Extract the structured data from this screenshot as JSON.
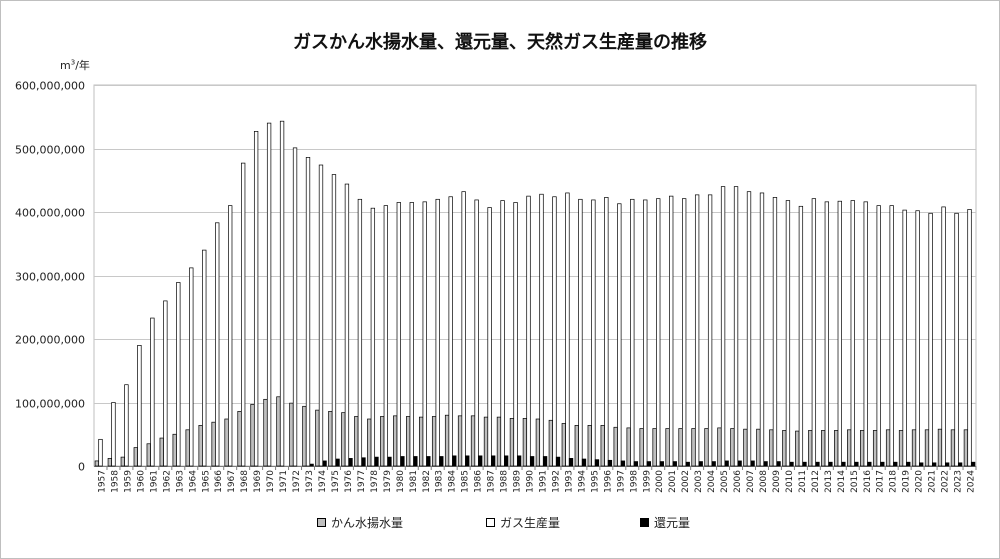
{
  "chart_data": {
    "type": "bar",
    "title": "ガスかん水揚水量、還元量、天然ガス生産量の推移",
    "unit_label": {
      "prefix": "m",
      "sup": "3",
      "suffix": "/年"
    },
    "categories": [
      "1957",
      "1958",
      "1959",
      "1960",
      "1961",
      "1962",
      "1963",
      "1964",
      "1965",
      "1966",
      "1967",
      "1968",
      "1969",
      "1970",
      "1971",
      "1972",
      "1973",
      "1974",
      "1975",
      "1976",
      "1977",
      "1978",
      "1979",
      "1980",
      "1981",
      "1982",
      "1983",
      "1984",
      "1985",
      "1986",
      "1987",
      "1988",
      "1989",
      "1990",
      "1991",
      "1992",
      "1993",
      "1994",
      "1995",
      "1996",
      "1997",
      "1998",
      "1999",
      "2000",
      "2001",
      "2002",
      "2003",
      "2004",
      "2005",
      "2006",
      "2007",
      "2008",
      "2009",
      "2010",
      "2011",
      "2012",
      "2013",
      "2014",
      "2015",
      "2016",
      "2017",
      "2018",
      "2019",
      "2020",
      "2021",
      "2022",
      "2023",
      "2024"
    ],
    "ylim": [
      0,
      600000000
    ],
    "yticks": [
      0,
      100000000,
      200000000,
      300000000,
      400000000,
      500000000,
      600000000
    ],
    "ytick_labels": [
      "0",
      "100,000,000",
      "200,000,000",
      "300,000,000",
      "400,000,000",
      "500,000,000",
      "600,000,000"
    ],
    "grid": true,
    "legend_position": "bottom",
    "series": [
      {
        "name": "かん水揚水量",
        "color": "#bfbfbf",
        "values": [
          8000000,
          12000000,
          14000000,
          29000000,
          35000000,
          44000000,
          50000000,
          57000000,
          64000000,
          69000000,
          74000000,
          86000000,
          97000000,
          105000000,
          109000000,
          99000000,
          94000000,
          88000000,
          86000000,
          84000000,
          78000000,
          74000000,
          78000000,
          79000000,
          78000000,
          77000000,
          78000000,
          80000000,
          79000000,
          79000000,
          77000000,
          77000000,
          75000000,
          75000000,
          74000000,
          72000000,
          67000000,
          64000000,
          64000000,
          64000000,
          61000000,
          60000000,
          59000000,
          59000000,
          59000000,
          59000000,
          59000000,
          59000000,
          60000000,
          59000000,
          58000000,
          58000000,
          57000000,
          56000000,
          55000000,
          56000000,
          56000000,
          56000000,
          57000000,
          56000000,
          56000000,
          57000000,
          56000000,
          57000000,
          57000000,
          58000000,
          57000000,
          57000000
        ]
      },
      {
        "name": "ガス生産量",
        "color": "#ffffff",
        "values": [
          42000000,
          100000000,
          128000000,
          190000000,
          233000000,
          260000000,
          289000000,
          312000000,
          340000000,
          383000000,
          410000000,
          477000000,
          527000000,
          540000000,
          543000000,
          501000000,
          486000000,
          474000000,
          459000000,
          444000000,
          420000000,
          406000000,
          410000000,
          415000000,
          415000000,
          416000000,
          420000000,
          424000000,
          432000000,
          419000000,
          407000000,
          418000000,
          415000000,
          425000000,
          428000000,
          424000000,
          430000000,
          420000000,
          419000000,
          423000000,
          413000000,
          420000000,
          419000000,
          421000000,
          425000000,
          421000000,
          427000000,
          427000000,
          440000000,
          440000000,
          432000000,
          430000000,
          423000000,
          418000000,
          409000000,
          421000000,
          416000000,
          417000000,
          418000000,
          416000000,
          410000000,
          410000000,
          403000000,
          402000000,
          398000000,
          408000000,
          398000000,
          404000000
        ]
      },
      {
        "name": "還元量",
        "color": "#000000",
        "values": [
          0,
          0,
          0,
          0,
          0,
          0,
          0,
          0,
          0,
          0,
          0,
          0,
          0,
          0,
          0,
          0,
          3000000,
          8000000,
          11000000,
          12000000,
          13000000,
          14000000,
          14000000,
          15000000,
          15000000,
          15000000,
          15000000,
          16000000,
          16000000,
          16000000,
          16000000,
          16000000,
          16000000,
          15000000,
          15000000,
          14000000,
          12000000,
          11000000,
          10000000,
          9000000,
          8000000,
          7000000,
          7000000,
          7000000,
          7000000,
          6000000,
          7000000,
          7000000,
          8000000,
          8000000,
          8000000,
          7000000,
          7000000,
          6000000,
          6000000,
          6000000,
          6000000,
          6000000,
          6000000,
          6000000,
          6000000,
          6000000,
          6000000,
          5000000,
          5000000,
          5000000,
          5000000,
          6000000
        ]
      }
    ]
  }
}
